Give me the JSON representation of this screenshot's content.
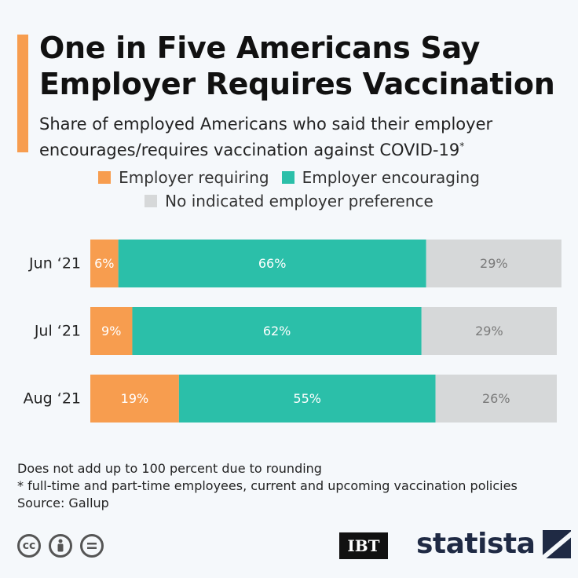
{
  "title": "One in Five Americans Say Employer Requires Vaccination",
  "subtitle": "Share of employed Americans who said their employer encourages/requires vaccination against COVID-19",
  "subtitle_mark": "*",
  "footnotes": [
    "Does not add up to 100 percent due to rounding",
    "* full-time and part-time employees, current and upcoming vaccination policies",
    "Source: Gallup"
  ],
  "brand": {
    "ibt": "IBT",
    "statista": "statista"
  },
  "chart_data": {
    "type": "bar",
    "orientation": "horizontal",
    "stacked": true,
    "categories": [
      "Jun ‘21",
      "Jul ‘21",
      "Aug ‘21"
    ],
    "series": [
      {
        "name": "Employer requiring",
        "color": "#f79d4f",
        "text_color": "#ffffff",
        "values": [
          6,
          9,
          19
        ],
        "labels": [
          "6%",
          "9%",
          "19%"
        ]
      },
      {
        "name": "Employer encouraging",
        "color": "#2bbfa9",
        "text_color": "#ffffff",
        "values": [
          66,
          62,
          55
        ],
        "labels": [
          "66%",
          "62%",
          "55%"
        ]
      },
      {
        "name": "No indicated employer preference",
        "color": "#d6d8d9",
        "text_color": "#7a7a7a",
        "values": [
          29,
          29,
          26
        ],
        "labels": [
          "29%",
          "29%",
          "26%"
        ]
      }
    ],
    "legend": "top-center",
    "grid": false
  }
}
